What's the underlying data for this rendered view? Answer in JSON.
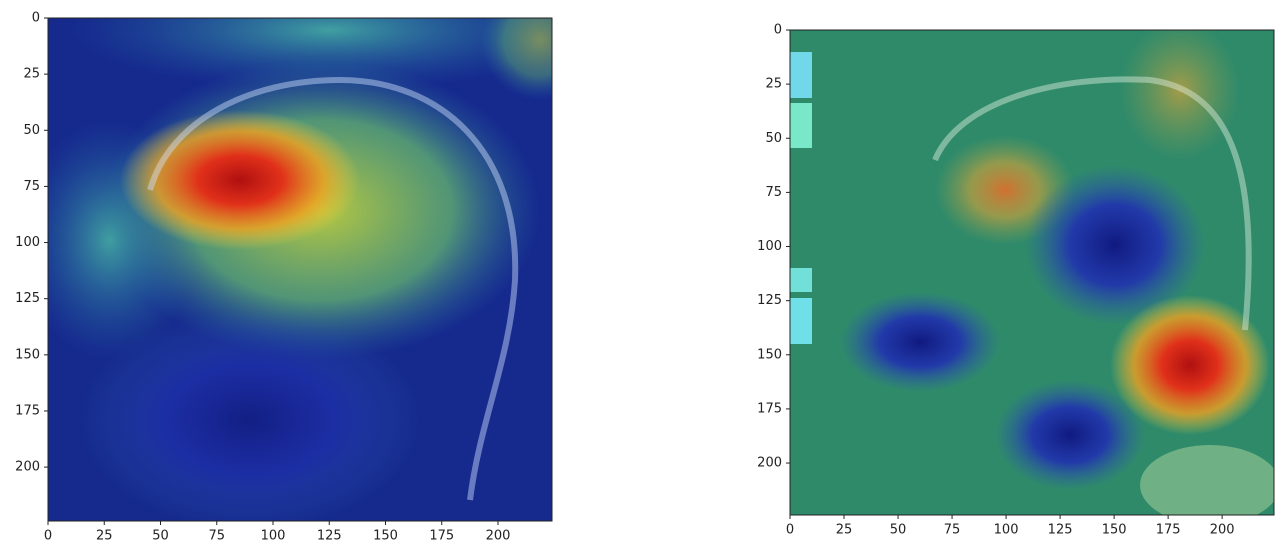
{
  "chart_data": [
    {
      "type": "image",
      "xlim": [
        0,
        224
      ],
      "ylim": [
        224,
        0
      ],
      "xticks": [
        0,
        25,
        50,
        75,
        100,
        125,
        150,
        175,
        200
      ],
      "yticks": [
        0,
        25,
        50,
        75,
        100,
        125,
        150,
        175,
        200
      ]
    },
    {
      "type": "image",
      "xlim": [
        0,
        224
      ],
      "ylim": [
        224,
        0
      ],
      "xticks": [
        0,
        25,
        50,
        75,
        100,
        125,
        150,
        175,
        200
      ],
      "yticks": [
        0,
        25,
        50,
        75,
        100,
        125,
        150,
        175,
        200
      ]
    }
  ]
}
